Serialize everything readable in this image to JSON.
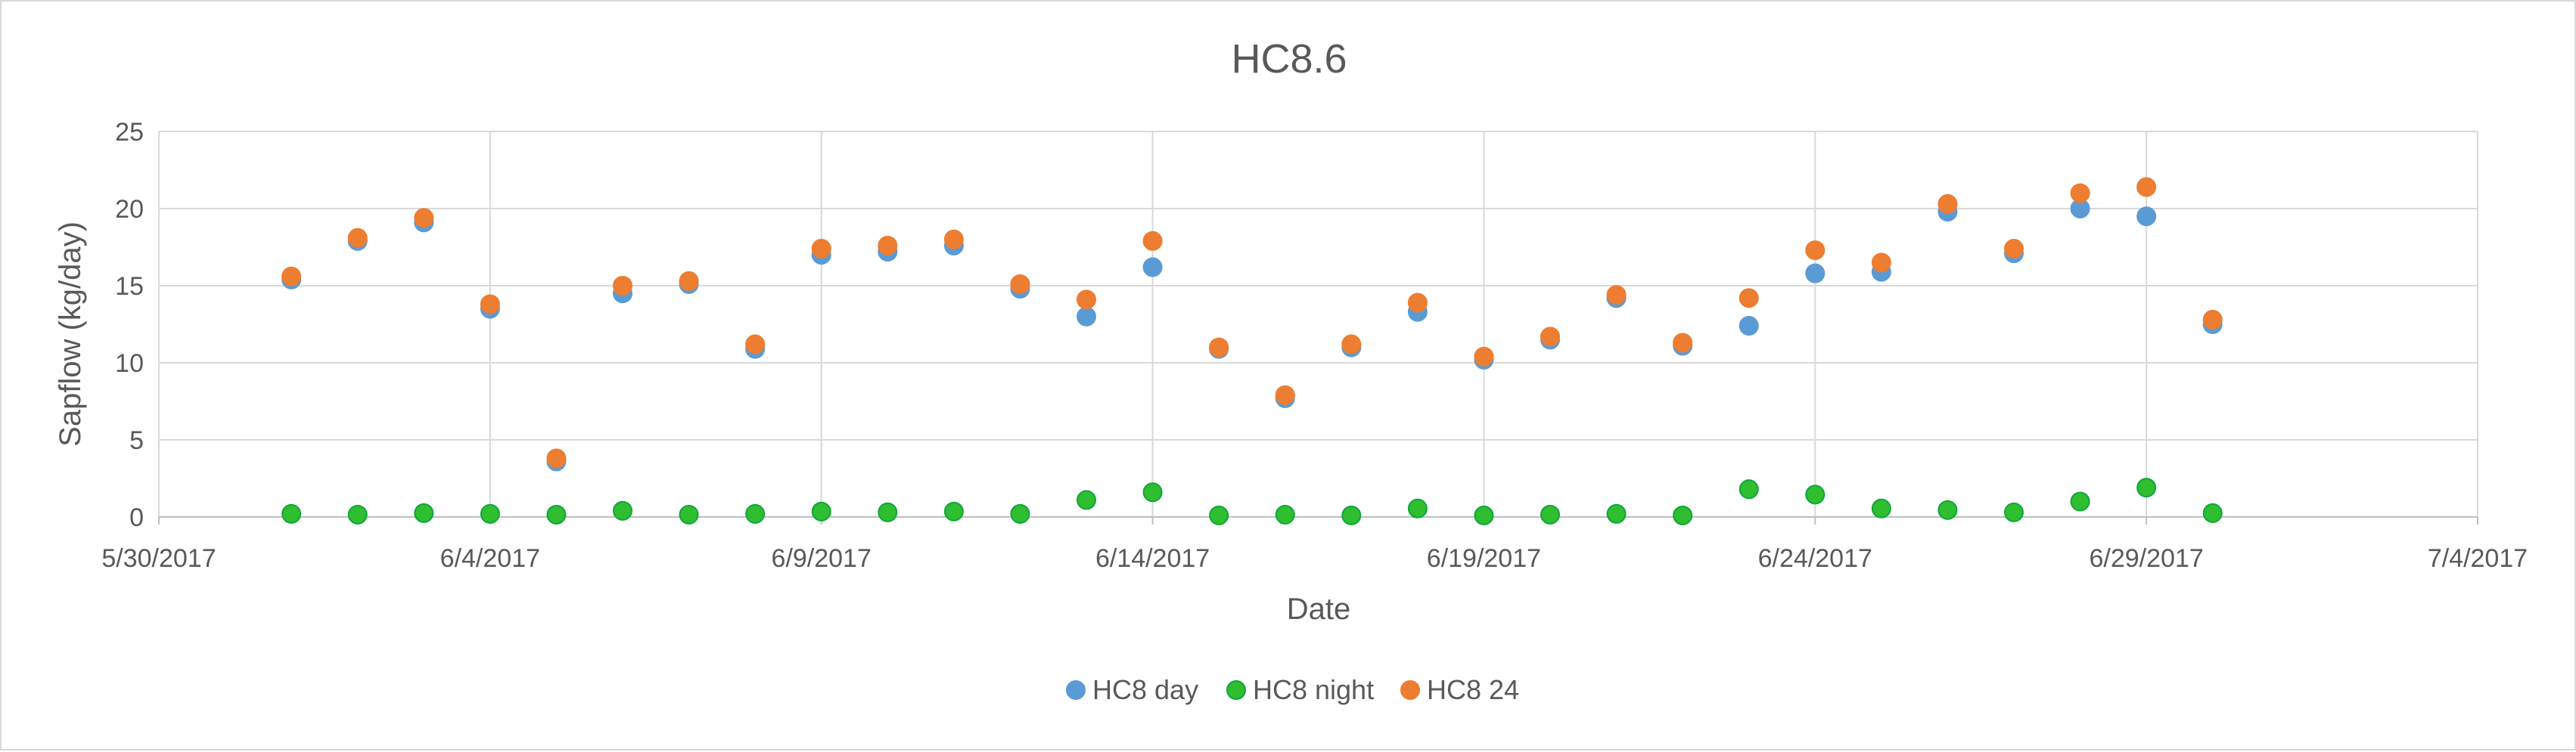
{
  "chart_data": {
    "type": "scatter",
    "title": "HC8.6",
    "xlabel": "Date",
    "ylabel": "Sapflow (kg/day)",
    "xlim": [
      "5/30/2017",
      "7/4/2017"
    ],
    "ylim": [
      0,
      25
    ],
    "x_ticks": [
      "5/30/2017",
      "6/4/2017",
      "6/9/2017",
      "6/14/2017",
      "6/19/2017",
      "6/24/2017",
      "6/29/2017",
      "7/4/2017"
    ],
    "y_ticks": [
      0,
      5,
      10,
      15,
      20,
      25
    ],
    "grid": true,
    "legend_position": "bottom",
    "x": [
      "6/1/2017",
      "6/2/2017",
      "6/3/2017",
      "6/4/2017",
      "6/5/2017",
      "6/6/2017",
      "6/7/2017",
      "6/8/2017",
      "6/9/2017",
      "6/10/2017",
      "6/11/2017",
      "6/12/2017",
      "6/13/2017",
      "6/14/2017",
      "6/15/2017",
      "6/16/2017",
      "6/17/2017",
      "6/18/2017",
      "6/19/2017",
      "6/20/2017",
      "6/21/2017",
      "6/22/2017",
      "6/23/2017",
      "6/24/2017",
      "6/25/2017",
      "6/26/2017",
      "6/27/2017",
      "6/28/2017",
      "6/29/2017",
      "6/30/2017"
    ],
    "series": [
      {
        "name": "HC8 day",
        "color": "#5b9bd5",
        "values": [
          15.4,
          17.9,
          19.1,
          13.5,
          3.6,
          14.5,
          15.1,
          10.9,
          17.0,
          17.2,
          17.6,
          14.8,
          13.0,
          16.2,
          10.9,
          7.7,
          11.0,
          13.3,
          10.2,
          11.5,
          14.2,
          11.1,
          12.4,
          15.8,
          15.9,
          19.8,
          17.1,
          20.0,
          19.5,
          12.5
        ]
      },
      {
        "name": "HC8 night",
        "color": "#2fbe2f",
        "values": [
          0.2,
          0.15,
          0.25,
          0.2,
          0.15,
          0.4,
          0.15,
          0.2,
          0.35,
          0.3,
          0.35,
          0.2,
          1.1,
          1.6,
          0.1,
          0.15,
          0.1,
          0.55,
          0.1,
          0.15,
          0.2,
          0.1,
          1.8,
          1.45,
          0.55,
          0.45,
          0.3,
          1.0,
          1.9,
          0.25
        ]
      },
      {
        "name": "HC8 24",
        "color": "#ed7d31",
        "values": [
          15.6,
          18.1,
          19.4,
          13.8,
          3.8,
          15.0,
          15.3,
          11.2,
          17.4,
          17.6,
          18.0,
          15.1,
          14.1,
          17.9,
          11.0,
          7.9,
          11.2,
          13.9,
          10.4,
          11.7,
          14.4,
          11.3,
          14.2,
          17.3,
          16.5,
          20.3,
          17.4,
          21.0,
          21.4,
          12.8
        ]
      }
    ]
  }
}
